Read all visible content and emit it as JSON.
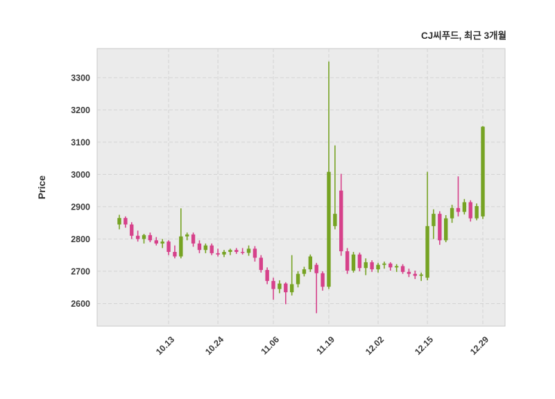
{
  "title": "CJ씨푸드, 최근 3개월",
  "ylabel": "Price",
  "chart_data": {
    "type": "candlestick",
    "title": "CJ씨푸드, 최근 3개월",
    "xlabel": "",
    "ylabel": "Price",
    "legend": "none",
    "grid": "dashed",
    "up_color": "#76a323",
    "down_color": "#d6418a",
    "plot_bg_color": "#ebebeb",
    "grid_color": "#d3d3d3",
    "ylim": [
      2530,
      3390
    ],
    "yticks": [
      2600,
      2700,
      2800,
      2900,
      3000,
      3100,
      3200,
      3300
    ],
    "xticks": [
      {
        "index": 8,
        "label": "10.13"
      },
      {
        "index": 16,
        "label": "10.24"
      },
      {
        "index": 25,
        "label": "11.06"
      },
      {
        "index": 34,
        "label": "11.19"
      },
      {
        "index": 42,
        "label": "12.02"
      },
      {
        "index": 50,
        "label": "12.15"
      },
      {
        "index": 59,
        "label": "12.29"
      }
    ],
    "candles_format": [
      "open",
      "high",
      "low",
      "close"
    ],
    "candles": [
      [
        2845,
        2875,
        2830,
        2865
      ],
      [
        2865,
        2870,
        2835,
        2845
      ],
      [
        2845,
        2852,
        2800,
        2810
      ],
      [
        2810,
        2826,
        2792,
        2800
      ],
      [
        2800,
        2816,
        2786,
        2812
      ],
      [
        2812,
        2820,
        2790,
        2796
      ],
      [
        2796,
        2806,
        2780,
        2786
      ],
      [
        2786,
        2800,
        2772,
        2792
      ],
      [
        2792,
        2796,
        2750,
        2760
      ],
      [
        2760,
        2780,
        2740,
        2746
      ],
      [
        2746,
        2895,
        2740,
        2808
      ],
      [
        2808,
        2820,
        2796,
        2814
      ],
      [
        2814,
        2820,
        2776,
        2786
      ],
      [
        2786,
        2796,
        2756,
        2766
      ],
      [
        2766,
        2786,
        2756,
        2780
      ],
      [
        2780,
        2786,
        2750,
        2756
      ],
      [
        2756,
        2770,
        2746,
        2752
      ],
      [
        2752,
        2766,
        2744,
        2760
      ],
      [
        2760,
        2770,
        2750,
        2766
      ],
      [
        2766,
        2772,
        2754,
        2760
      ],
      [
        2760,
        2772,
        2752,
        2757
      ],
      [
        2757,
        2780,
        2748,
        2770
      ],
      [
        2770,
        2778,
        2730,
        2742
      ],
      [
        2742,
        2750,
        2696,
        2704
      ],
      [
        2704,
        2712,
        2660,
        2670
      ],
      [
        2670,
        2680,
        2612,
        2645
      ],
      [
        2645,
        2672,
        2632,
        2662
      ],
      [
        2662,
        2666,
        2598,
        2635
      ],
      [
        2635,
        2750,
        2625,
        2660
      ],
      [
        2660,
        2700,
        2650,
        2692
      ],
      [
        2692,
        2714,
        2684,
        2706
      ],
      [
        2706,
        2752,
        2698,
        2746
      ],
      [
        2720,
        2726,
        2570,
        2694
      ],
      [
        2694,
        2700,
        2640,
        2652
      ],
      [
        2652,
        3350,
        2645,
        3008
      ],
      [
        2840,
        3090,
        2830,
        2878
      ],
      [
        2950,
        3002,
        2748,
        2762
      ],
      [
        2762,
        2772,
        2692,
        2702
      ],
      [
        2702,
        2760,
        2696,
        2752
      ],
      [
        2752,
        2758,
        2700,
        2710
      ],
      [
        2710,
        2740,
        2688,
        2728
      ],
      [
        2728,
        2734,
        2698,
        2706
      ],
      [
        2706,
        2726,
        2696,
        2720
      ],
      [
        2720,
        2730,
        2708,
        2724
      ],
      [
        2724,
        2728,
        2702,
        2712
      ],
      [
        2712,
        2722,
        2698,
        2716
      ],
      [
        2716,
        2722,
        2692,
        2698
      ],
      [
        2698,
        2708,
        2682,
        2692
      ],
      [
        2692,
        2702,
        2676,
        2686
      ],
      [
        2686,
        2696,
        2670,
        2690
      ],
      [
        2680,
        3008,
        2672,
        2840
      ],
      [
        2840,
        2892,
        2800,
        2878
      ],
      [
        2878,
        2886,
        2782,
        2796
      ],
      [
        2796,
        2874,
        2790,
        2864
      ],
      [
        2864,
        2906,
        2850,
        2896
      ],
      [
        2896,
        2994,
        2870,
        2884
      ],
      [
        2884,
        2924,
        2876,
        2914
      ],
      [
        2914,
        2920,
        2854,
        2864
      ],
      [
        2864,
        2910,
        2858,
        2902
      ],
      [
        2870,
        3150,
        2862,
        3148
      ]
    ]
  }
}
